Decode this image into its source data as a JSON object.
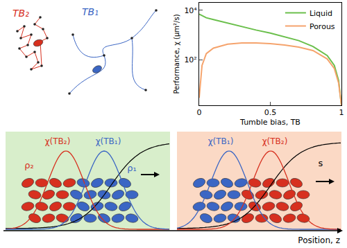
{
  "chart_data": {
    "type": "line",
    "xlabel": "Tumble bias, TB",
    "ylabel": "Performance, χ (μm²/s)",
    "log": "y",
    "grid": false,
    "legend": "top right",
    "xlim": [
      0,
      1
    ],
    "ylim": [
      1.5,
      20000
    ],
    "xticks": [
      0,
      0.5,
      1
    ],
    "yticks": [
      {
        "value": 100,
        "label": "10²"
      },
      {
        "value": 10000,
        "label": "10⁴"
      }
    ],
    "x": [
      0,
      0.02,
      0.05,
      0.1,
      0.2,
      0.3,
      0.4,
      0.5,
      0.6,
      0.7,
      0.8,
      0.9,
      0.95,
      0.98,
      1
    ],
    "series": [
      {
        "name": "Liquid",
        "color": "#6abf4b",
        "values": [
          7000,
          6000,
          5000,
          4200,
          3000,
          2200,
          1600,
          1200,
          850,
          600,
          350,
          150,
          60,
          15,
          1.5
        ]
      },
      {
        "name": "Porous",
        "color": "#f5a36c",
        "values": [
          3,
          60,
          180,
          300,
          430,
          480,
          480,
          450,
          400,
          330,
          240,
          110,
          45,
          12,
          1.5
        ]
      }
    ]
  },
  "trajectories": [
    {
      "label": "TB₂",
      "color": "#d7301f"
    },
    {
      "label": "TB₁",
      "color": "#3b66c4"
    }
  ],
  "panels": [
    {
      "background": "#d8eecb",
      "curves": [
        {
          "label": "χ(TB₂)",
          "color": "#d7301f"
        },
        {
          "label": "χ(TB₁)",
          "color": "#3b66c4"
        }
      ],
      "densities": [
        {
          "label": "ρ₂",
          "color": "#d7301f"
        },
        {
          "label": "ρ₁",
          "color": "#3b66c4"
        }
      ]
    },
    {
      "background": "#fbd9c5",
      "curves": [
        {
          "label": "χ(TB₁)",
          "color": "#3b66c4"
        },
        {
          "label": "χ(TB₂)",
          "color": "#d7301f"
        }
      ],
      "signal": "s"
    }
  ],
  "axis_label": "Position, z"
}
